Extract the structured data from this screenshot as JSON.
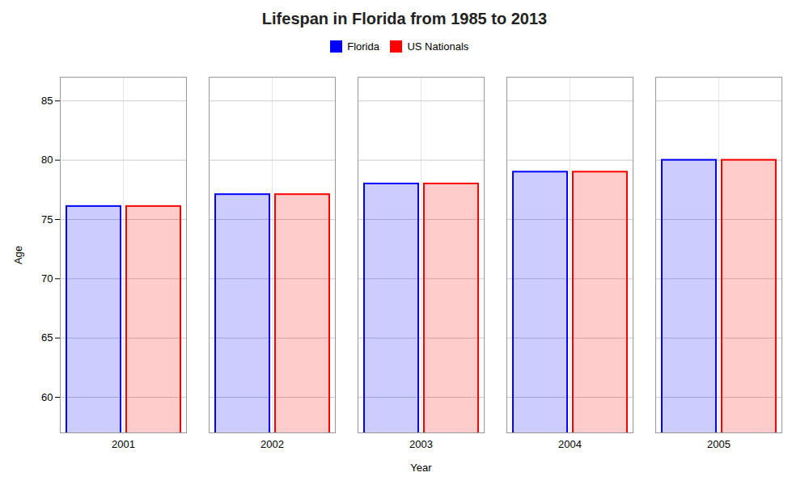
{
  "chart_data": {
    "type": "bar",
    "title": "Lifespan in Florida from 1985 to 2013",
    "xlabel": "Year",
    "ylabel": "Age",
    "categories": [
      "2001",
      "2002",
      "2003",
      "2004",
      "2005"
    ],
    "series": [
      {
        "name": "Florida",
        "color": "#0000ff",
        "values": [
          76.1,
          77.1,
          78.0,
          79.0,
          80.0
        ]
      },
      {
        "name": "US Nationals",
        "color": "#ff0000",
        "values": [
          76.1,
          77.1,
          78.0,
          79.0,
          80.0
        ]
      }
    ],
    "ylim": [
      57,
      87
    ],
    "yticks": [
      60,
      65,
      70,
      75,
      80,
      85
    ],
    "grid": true,
    "legend": "top"
  }
}
